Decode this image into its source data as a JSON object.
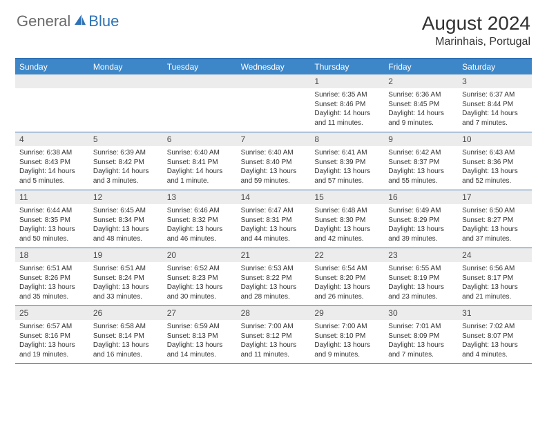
{
  "logo": {
    "general": "General",
    "blue": "Blue"
  },
  "title": "August 2024",
  "location": "Marinhais, Portugal",
  "colors": {
    "header_bg": "#3d87c9",
    "border": "#2f73b7",
    "daynum_bg": "#ececec",
    "text": "#323232",
    "logo_gray": "#6b6b6b",
    "logo_blue": "#2f73b7"
  },
  "dayNames": [
    "Sunday",
    "Monday",
    "Tuesday",
    "Wednesday",
    "Thursday",
    "Friday",
    "Saturday"
  ],
  "weeks": [
    [
      {
        "n": "",
        "sr": "",
        "ss": "",
        "dl": ""
      },
      {
        "n": "",
        "sr": "",
        "ss": "",
        "dl": ""
      },
      {
        "n": "",
        "sr": "",
        "ss": "",
        "dl": ""
      },
      {
        "n": "",
        "sr": "",
        "ss": "",
        "dl": ""
      },
      {
        "n": "1",
        "sr": "Sunrise: 6:35 AM",
        "ss": "Sunset: 8:46 PM",
        "dl": "Daylight: 14 hours and 11 minutes."
      },
      {
        "n": "2",
        "sr": "Sunrise: 6:36 AM",
        "ss": "Sunset: 8:45 PM",
        "dl": "Daylight: 14 hours and 9 minutes."
      },
      {
        "n": "3",
        "sr": "Sunrise: 6:37 AM",
        "ss": "Sunset: 8:44 PM",
        "dl": "Daylight: 14 hours and 7 minutes."
      }
    ],
    [
      {
        "n": "4",
        "sr": "Sunrise: 6:38 AM",
        "ss": "Sunset: 8:43 PM",
        "dl": "Daylight: 14 hours and 5 minutes."
      },
      {
        "n": "5",
        "sr": "Sunrise: 6:39 AM",
        "ss": "Sunset: 8:42 PM",
        "dl": "Daylight: 14 hours and 3 minutes."
      },
      {
        "n": "6",
        "sr": "Sunrise: 6:40 AM",
        "ss": "Sunset: 8:41 PM",
        "dl": "Daylight: 14 hours and 1 minute."
      },
      {
        "n": "7",
        "sr": "Sunrise: 6:40 AM",
        "ss": "Sunset: 8:40 PM",
        "dl": "Daylight: 13 hours and 59 minutes."
      },
      {
        "n": "8",
        "sr": "Sunrise: 6:41 AM",
        "ss": "Sunset: 8:39 PM",
        "dl": "Daylight: 13 hours and 57 minutes."
      },
      {
        "n": "9",
        "sr": "Sunrise: 6:42 AM",
        "ss": "Sunset: 8:37 PM",
        "dl": "Daylight: 13 hours and 55 minutes."
      },
      {
        "n": "10",
        "sr": "Sunrise: 6:43 AM",
        "ss": "Sunset: 8:36 PM",
        "dl": "Daylight: 13 hours and 52 minutes."
      }
    ],
    [
      {
        "n": "11",
        "sr": "Sunrise: 6:44 AM",
        "ss": "Sunset: 8:35 PM",
        "dl": "Daylight: 13 hours and 50 minutes."
      },
      {
        "n": "12",
        "sr": "Sunrise: 6:45 AM",
        "ss": "Sunset: 8:34 PM",
        "dl": "Daylight: 13 hours and 48 minutes."
      },
      {
        "n": "13",
        "sr": "Sunrise: 6:46 AM",
        "ss": "Sunset: 8:32 PM",
        "dl": "Daylight: 13 hours and 46 minutes."
      },
      {
        "n": "14",
        "sr": "Sunrise: 6:47 AM",
        "ss": "Sunset: 8:31 PM",
        "dl": "Daylight: 13 hours and 44 minutes."
      },
      {
        "n": "15",
        "sr": "Sunrise: 6:48 AM",
        "ss": "Sunset: 8:30 PM",
        "dl": "Daylight: 13 hours and 42 minutes."
      },
      {
        "n": "16",
        "sr": "Sunrise: 6:49 AM",
        "ss": "Sunset: 8:29 PM",
        "dl": "Daylight: 13 hours and 39 minutes."
      },
      {
        "n": "17",
        "sr": "Sunrise: 6:50 AM",
        "ss": "Sunset: 8:27 PM",
        "dl": "Daylight: 13 hours and 37 minutes."
      }
    ],
    [
      {
        "n": "18",
        "sr": "Sunrise: 6:51 AM",
        "ss": "Sunset: 8:26 PM",
        "dl": "Daylight: 13 hours and 35 minutes."
      },
      {
        "n": "19",
        "sr": "Sunrise: 6:51 AM",
        "ss": "Sunset: 8:24 PM",
        "dl": "Daylight: 13 hours and 33 minutes."
      },
      {
        "n": "20",
        "sr": "Sunrise: 6:52 AM",
        "ss": "Sunset: 8:23 PM",
        "dl": "Daylight: 13 hours and 30 minutes."
      },
      {
        "n": "21",
        "sr": "Sunrise: 6:53 AM",
        "ss": "Sunset: 8:22 PM",
        "dl": "Daylight: 13 hours and 28 minutes."
      },
      {
        "n": "22",
        "sr": "Sunrise: 6:54 AM",
        "ss": "Sunset: 8:20 PM",
        "dl": "Daylight: 13 hours and 26 minutes."
      },
      {
        "n": "23",
        "sr": "Sunrise: 6:55 AM",
        "ss": "Sunset: 8:19 PM",
        "dl": "Daylight: 13 hours and 23 minutes."
      },
      {
        "n": "24",
        "sr": "Sunrise: 6:56 AM",
        "ss": "Sunset: 8:17 PM",
        "dl": "Daylight: 13 hours and 21 minutes."
      }
    ],
    [
      {
        "n": "25",
        "sr": "Sunrise: 6:57 AM",
        "ss": "Sunset: 8:16 PM",
        "dl": "Daylight: 13 hours and 19 minutes."
      },
      {
        "n": "26",
        "sr": "Sunrise: 6:58 AM",
        "ss": "Sunset: 8:14 PM",
        "dl": "Daylight: 13 hours and 16 minutes."
      },
      {
        "n": "27",
        "sr": "Sunrise: 6:59 AM",
        "ss": "Sunset: 8:13 PM",
        "dl": "Daylight: 13 hours and 14 minutes."
      },
      {
        "n": "28",
        "sr": "Sunrise: 7:00 AM",
        "ss": "Sunset: 8:12 PM",
        "dl": "Daylight: 13 hours and 11 minutes."
      },
      {
        "n": "29",
        "sr": "Sunrise: 7:00 AM",
        "ss": "Sunset: 8:10 PM",
        "dl": "Daylight: 13 hours and 9 minutes."
      },
      {
        "n": "30",
        "sr": "Sunrise: 7:01 AM",
        "ss": "Sunset: 8:09 PM",
        "dl": "Daylight: 13 hours and 7 minutes."
      },
      {
        "n": "31",
        "sr": "Sunrise: 7:02 AM",
        "ss": "Sunset: 8:07 PM",
        "dl": "Daylight: 13 hours and 4 minutes."
      }
    ]
  ]
}
